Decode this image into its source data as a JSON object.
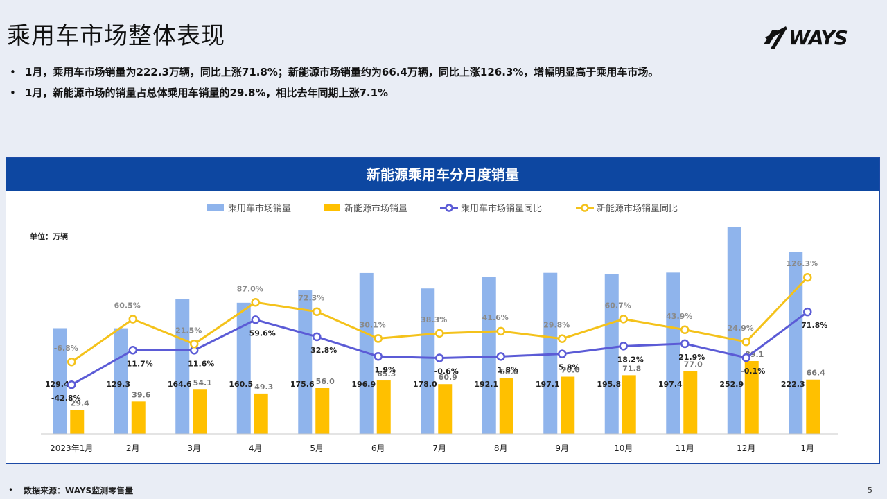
{
  "slide": {
    "title": "乘用车市场整体表现",
    "logo_text": "WAYS",
    "bullets": [
      "1月，乘用车市场销量为222.3万辆，同比上涨71.8%；新能源市场销量约为66.4万辆，同比上涨126.3%，增幅明显高于乘用车市场。",
      "1月，新能源市场的销量占总体乘用车销量的29.8%，相比去年同期上涨7.1%"
    ],
    "bullet_glyph": "•",
    "panel_title": "新能源乘用车分月度销量",
    "footer_source": "数据来源：WAYS监测零售量",
    "page_number": "5"
  },
  "chart_data": {
    "type": "bar",
    "title": "新能源乘用车分月度销量",
    "unit_label": "单位：万辆",
    "categories": [
      "2023年1月",
      "2月",
      "3月",
      "4月",
      "5月",
      "6月",
      "7月",
      "8月",
      "9月",
      "10月",
      "11月",
      "12月",
      "1月"
    ],
    "series": [
      {
        "name": "乘用车市场销量",
        "kind": "bar",
        "color": "#8fb4ec",
        "values": [
          129.4,
          129.3,
          164.6,
          160.5,
          175.6,
          196.9,
          178.0,
          192.1,
          197.1,
          195.8,
          197.4,
          252.9,
          222.3
        ],
        "labels": [
          "129.4",
          "129.3",
          "164.6",
          "160.5",
          "175.6",
          "196.9",
          "178.0",
          "192.1",
          "197.1",
          "195.8",
          "197.4",
          "252.9",
          "222.3"
        ]
      },
      {
        "name": "新能源市场销量",
        "kind": "bar",
        "color": "#ffc000",
        "values": [
          29.4,
          39.6,
          54.1,
          49.3,
          56.0,
          65.3,
          60.9,
          68.0,
          70.0,
          71.8,
          77.0,
          89.1,
          66.4
        ],
        "labels": [
          "29.4",
          "39.6",
          "54.1",
          "49.3",
          "56.0",
          "65.3",
          "60.9",
          "68.0",
          "70.0",
          "71.8",
          "77.0",
          "89.1",
          "66.4"
        ]
      },
      {
        "name": "乘用车市场销量同比",
        "kind": "line",
        "color": "#5b5bd6",
        "values": [
          -42.8,
          11.7,
          11.6,
          59.6,
          32.8,
          1.9,
          -0.6,
          1.8,
          5.8,
          18.2,
          21.9,
          -0.1,
          71.8
        ],
        "labels": [
          "-42.8%",
          "11.7%",
          "11.6%",
          "59.6%",
          "32.8%",
          "1.9%",
          "-0.6%",
          "1.8%",
          "5.8%",
          "18.2%",
          "21.9%",
          "-0.1%",
          "71.8%"
        ]
      },
      {
        "name": "新能源市场销量同比",
        "kind": "line",
        "color": "#f4c21b",
        "values": [
          -6.8,
          60.5,
          21.5,
          87.0,
          72.3,
          30.1,
          38.3,
          41.6,
          29.8,
          60.7,
          43.9,
          24.9,
          126.3
        ],
        "labels": [
          "-6.8%",
          "60.5%",
          "21.5%",
          "87.0%",
          "72.3%",
          "30.1%",
          "38.3%",
          "41.6%",
          "29.8%",
          "60.7%",
          "43.9%",
          "24.9%",
          "126.3%"
        ]
      }
    ],
    "legend_position": "top",
    "grid": false,
    "bar_axis_range": [
      0,
      280
    ],
    "line_axis_range": [
      -120,
      240
    ]
  }
}
